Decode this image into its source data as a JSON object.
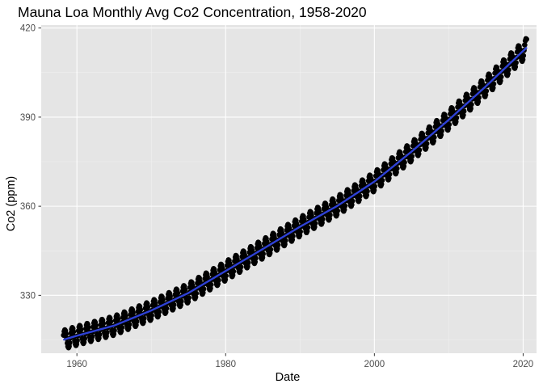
{
  "chart_data": {
    "type": "scatter",
    "title": "Mauna Loa Monthly Avg Co2 Concentration, 1958-2020",
    "xlabel": "Date",
    "ylabel": "Co2 (ppm)",
    "xlim": [
      1955.2,
      2021.8
    ],
    "ylim": [
      310.5,
      421.0
    ],
    "x_ticks": [
      1960,
      1980,
      2000,
      2020
    ],
    "x_tick_labels": [
      "1960",
      "1980",
      "2000",
      "2020"
    ],
    "y_ticks": [
      330,
      360,
      390,
      420
    ],
    "y_tick_labels": [
      "330",
      "360",
      "390",
      "420"
    ],
    "x_start": "1958-03",
    "x_end": "2020-06",
    "trend_points": [
      [
        1958,
        314.9
      ],
      [
        1960,
        316.4
      ],
      [
        1965,
        319.8
      ],
      [
        1970,
        324.9
      ],
      [
        1975,
        330.8
      ],
      [
        1980,
        338.2
      ],
      [
        1985,
        345.6
      ],
      [
        1990,
        353.1
      ],
      [
        1995,
        360.1
      ],
      [
        2000,
        368.3
      ],
      [
        2005,
        378.4
      ],
      [
        2010,
        389.1
      ],
      [
        2015,
        400.4
      ],
      [
        2020,
        412.3
      ]
    ],
    "seasonal_amplitude": 3.2,
    "series": [
      {
        "values_from": "trend_points"
      }
    ],
    "grid": true,
    "legend": "none",
    "colors": {
      "panel_background": "#e5e5e5",
      "grid_major": "#ffffff",
      "points": "#000000",
      "smooth_line": "#2e41d6"
    }
  }
}
